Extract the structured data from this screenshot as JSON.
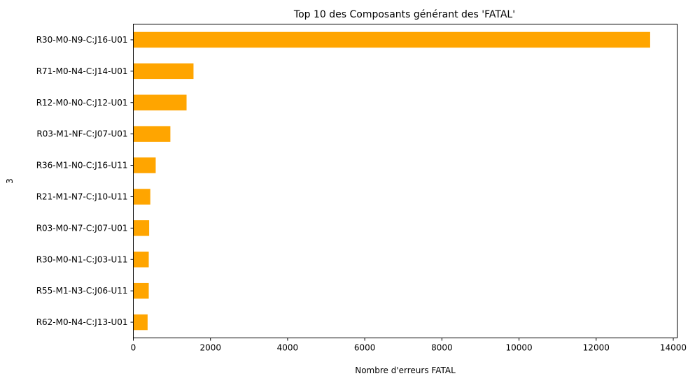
{
  "chart_data": {
    "type": "bar",
    "orientation": "horizontal",
    "title": "Top 10 des Composants générant des 'FATAL'",
    "xlabel": "Nombre d'erreurs FATAL",
    "ylabel": "3",
    "categories": [
      "R30-M0-N9-C:J16-U01",
      "R71-M0-N4-C:J14-U01",
      "R12-M0-N0-C:J12-U01",
      "R03-M1-NF-C:J07-U01",
      "R36-M1-N0-C:J16-U11",
      "R21-M1-N7-C:J10-U11",
      "R03-M0-N7-C:J07-U01",
      "R30-M0-N1-C:J03-U11",
      "R55-M1-N3-C:J06-U11",
      "R62-M0-N4-C:J13-U01"
    ],
    "values": [
      13400,
      1560,
      1380,
      960,
      580,
      440,
      410,
      400,
      400,
      370
    ],
    "xlim": [
      0,
      14100
    ],
    "xticks": [
      0,
      2000,
      4000,
      6000,
      8000,
      10000,
      12000,
      14000
    ],
    "bar_color": "#ffa500",
    "grid": false,
    "legend": "none"
  }
}
